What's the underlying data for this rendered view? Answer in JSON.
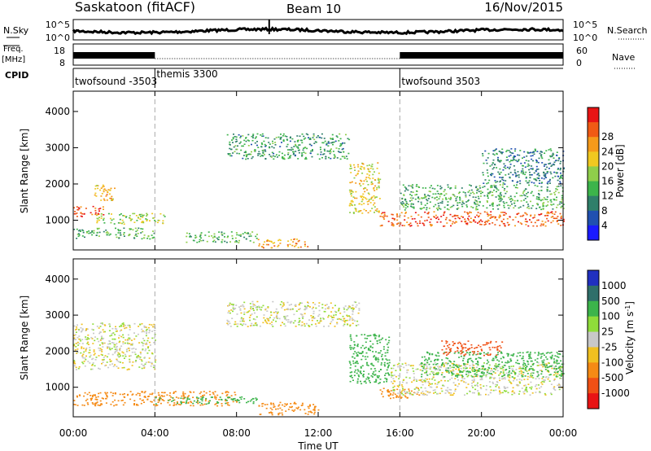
{
  "header": {
    "station": "Saskatoon (fitACF)",
    "beam": "Beam 10",
    "date": "16/Nov/2015"
  },
  "status_panels": {
    "nsky_label": "N.Sky",
    "nsky_top_tick": "10^5",
    "nsky_bottom_tick": "10^0",
    "nsearch_label": "N.Search",
    "nsearch_top_tick": "10^5",
    "nsearch_bottom_tick": "10^0",
    "freq_label_line1": "Freq.",
    "freq_label_line2": "[MHz]",
    "freq_ticks": [
      "18",
      "8"
    ],
    "nave_label": "Nave",
    "nave_ticks": [
      "60",
      "0"
    ],
    "cpid_label": "CPID",
    "cpid_segments": [
      {
        "label": "twofsound -3503",
        "start_hour": 0,
        "end_hour": 4
      },
      {
        "label": "themis 3300",
        "start_hour": 4,
        "end_hour": 16
      },
      {
        "label": "twofsound 3503",
        "start_hour": 16,
        "end_hour": 24
      }
    ]
  },
  "time_axis": {
    "label": "Time UT",
    "ticks": [
      "00:00",
      "04:00",
      "08:00",
      "12:00",
      "16:00",
      "20:00",
      "00:00"
    ]
  },
  "chart_data": [
    {
      "type": "heatmap",
      "title": "Power",
      "xlabel": "Time UT",
      "ylabel": "Slant Range [km]",
      "xlim": [
        0,
        24
      ],
      "ylim": [
        180,
        4560
      ],
      "y_ticks": [
        "1000",
        "2000",
        "3000",
        "4000"
      ],
      "colorbar_label": "Power [dB]",
      "colorbar_ticks": [
        "4",
        "8",
        "12",
        "16",
        "20",
        "24",
        "28"
      ],
      "colorbar_colors": [
        "#1a1aff",
        "#2050b0",
        "#2f7f6a",
        "#3cb44b",
        "#8fce4a",
        "#f0c820",
        "#f59a1a",
        "#f05a14",
        "#e81414"
      ],
      "echo_regions": [
        {
          "t0": 0.0,
          "t1": 1.5,
          "r0": 1100,
          "r1": 1400,
          "power_db": 28
        },
        {
          "t0": 1.0,
          "t1": 2.0,
          "r0": 1500,
          "r1": 2000,
          "power_db": 22
        },
        {
          "t0": 0.0,
          "t1": 4.0,
          "r0": 500,
          "r1": 800,
          "power_db": 12
        },
        {
          "t0": 1.0,
          "t1": 4.5,
          "r0": 900,
          "r1": 1200,
          "power_db": 16
        },
        {
          "t0": 5.5,
          "t1": 9.0,
          "r0": 400,
          "r1": 700,
          "power_db": 12
        },
        {
          "t0": 9.0,
          "t1": 11.5,
          "r0": 250,
          "r1": 500,
          "power_db": 24
        },
        {
          "t0": 7.5,
          "t1": 13.5,
          "r0": 2700,
          "r1": 3400,
          "power_db": 10
        },
        {
          "t0": 13.5,
          "t1": 15.0,
          "r0": 1200,
          "r1": 2600,
          "power_db": 20
        },
        {
          "t0": 15.0,
          "t1": 24.0,
          "r0": 850,
          "r1": 1250,
          "power_db": 28
        },
        {
          "t0": 16.0,
          "t1": 24.0,
          "r0": 1300,
          "r1": 2000,
          "power_db": 12
        },
        {
          "t0": 20.0,
          "t1": 24.0,
          "r0": 2000,
          "r1": 3000,
          "power_db": 8
        }
      ]
    },
    {
      "type": "heatmap",
      "title": "Velocity",
      "xlabel": "Time UT",
      "ylabel": "Slant Range [km]",
      "xlim": [
        0,
        24
      ],
      "ylim": [
        180,
        4560
      ],
      "y_ticks": [
        "1000",
        "2000",
        "3000",
        "4000"
      ],
      "colorbar_label": "Velocity [m s^-1]",
      "colorbar_ticks": [
        "1000",
        "500",
        "100",
        "25",
        "-25",
        "-100",
        "-500",
        "-1000"
      ],
      "colorbar_colors": [
        "#2030c0",
        "#2f6f6a",
        "#3cb44b",
        "#8fdc3a",
        "#c8c8c8",
        "#f0c020",
        "#f58a14",
        "#f05014",
        "#e81414"
      ],
      "echo_regions": [
        {
          "t0": 0.0,
          "t1": 4.0,
          "r0": 1500,
          "r1": 2800,
          "velocity": 0
        },
        {
          "t0": 0.0,
          "t1": 8.0,
          "r0": 500,
          "r1": 900,
          "velocity": -100
        },
        {
          "t0": 4.0,
          "t1": 9.0,
          "r0": 550,
          "r1": 750,
          "velocity": 100
        },
        {
          "t0": 9.0,
          "t1": 12.0,
          "r0": 250,
          "r1": 600,
          "velocity": -100
        },
        {
          "t0": 7.5,
          "t1": 14.0,
          "r0": 2700,
          "r1": 3400,
          "velocity": 0
        },
        {
          "t0": 13.5,
          "t1": 15.5,
          "r0": 1100,
          "r1": 2500,
          "velocity": 100
        },
        {
          "t0": 15.0,
          "t1": 17.0,
          "r0": 700,
          "r1": 1000,
          "velocity": -100
        },
        {
          "t0": 15.5,
          "t1": 24.0,
          "r0": 800,
          "r1": 1700,
          "velocity": 0
        },
        {
          "t0": 17.0,
          "t1": 24.0,
          "r0": 1300,
          "r1": 2000,
          "velocity": 100
        },
        {
          "t0": 18.0,
          "t1": 21.0,
          "r0": 1900,
          "r1": 2300,
          "velocity": -500
        }
      ]
    }
  ]
}
